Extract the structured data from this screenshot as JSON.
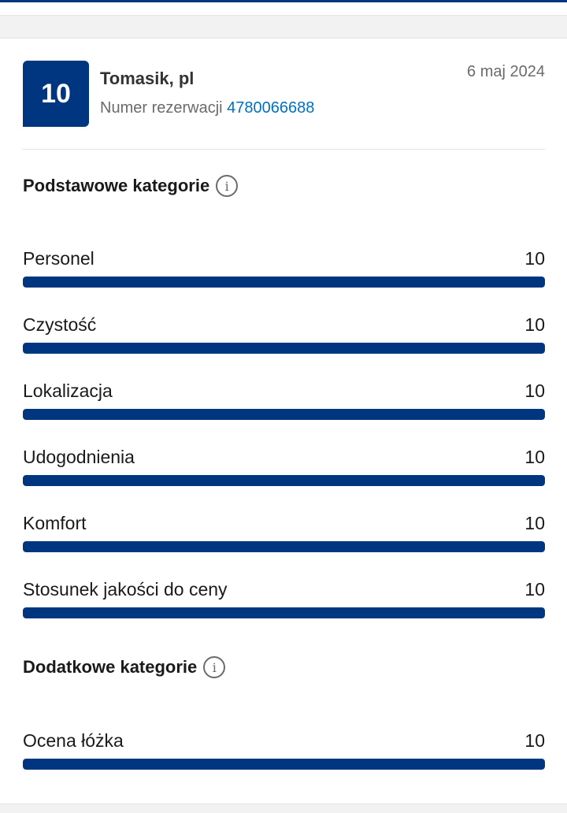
{
  "review": {
    "score": "10",
    "reviewer": "Tomasik, pl",
    "booking_label": "Numer rezerwacji",
    "booking_number": "4780066688",
    "date": "6 maj 2024"
  },
  "basic": {
    "title": "Podstawowe kategorie",
    "categories": [
      {
        "label": "Personel",
        "score": "10",
        "fill": 1.0
      },
      {
        "label": "Czystość",
        "score": "10",
        "fill": 1.0
      },
      {
        "label": "Lokalizacja",
        "score": "10",
        "fill": 1.0
      },
      {
        "label": "Udogodnienia",
        "score": "10",
        "fill": 1.0
      },
      {
        "label": "Komfort",
        "score": "10",
        "fill": 1.0
      },
      {
        "label": "Stosunek jakości do ceny",
        "score": "10",
        "fill": 1.0
      }
    ]
  },
  "extra": {
    "title": "Dodatkowe kategorie",
    "categories": [
      {
        "label": "Ocena łóżka",
        "score": "10",
        "fill": 1.0
      }
    ]
  },
  "colors": {
    "accent": "#003580",
    "link": "#0071c2"
  },
  "icons": {
    "info": "info-icon"
  }
}
